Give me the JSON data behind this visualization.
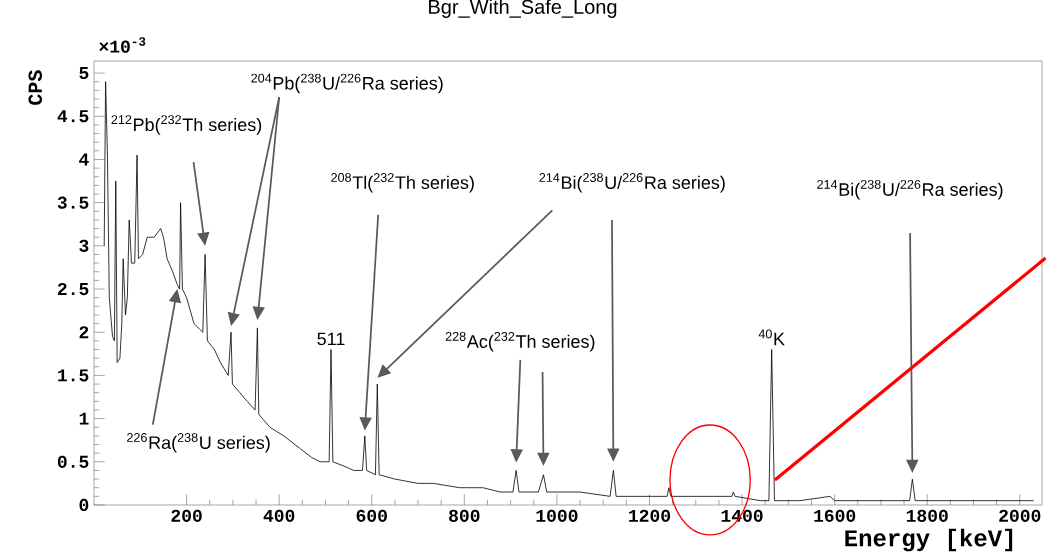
{
  "chart_data": {
    "type": "line",
    "title": "Bgr_With_Safe_Long",
    "xlabel": "Energy [keV]",
    "ylabel": "CPS",
    "annotations": [
      "×10$^{-3}$",
      "$^{212}$Pb($^{232}$Th series)",
      "$^{204}$Pb($^{238}$U/$^{226}$Ra series)",
      {
        "text": "511",
        "x": 512,
        "y": 1.8
      },
      "$^{208}$Tl($^{232}$Th series)",
      "$^{214}$Bi($^{238}$U/$^{226}$Ra series)",
      "$^{228}$Ac($^{232}$Th series)",
      {
        "text": "$^{40}$K",
        "x": 1464,
        "y": 1.8
      },
      "$^{214}$Bi($^{238}$U/$^{226}$Ra series)",
      "$^{226}$Ra($^{238}$U series)"
    ],
    "x": [
      22,
      25,
      29,
      33,
      40,
      44,
      47,
      50,
      56,
      60,
      63,
      68,
      72,
      76,
      81,
      88,
      93,
      96,
      105,
      115,
      130,
      144,
      150,
      158,
      170,
      180,
      185,
      187,
      191,
      200,
      216,
      235,
      240,
      245,
      260,
      273,
      290,
      296,
      299,
      315,
      331,
      348,
      353,
      356,
      380,
      410,
      446,
      470,
      489,
      508,
      512,
      516,
      540,
      561,
      580,
      585,
      589,
      608,
      612,
      616,
      650,
      700,
      733,
      790,
      840,
      878,
      905,
      912,
      918,
      960,
      971,
      978,
      1050,
      1115,
      1122,
      1128,
      1200,
      1238,
      1242,
      1246,
      1300,
      1378,
      1381,
      1385,
      1440,
      1458,
      1464,
      1470,
      1525,
      1590,
      1600,
      1700,
      1762,
      1768,
      1774,
      1850,
      1950,
      2030
    ],
    "series": [
      {
        "color": "#000000",
        "values": [
          3.0,
          4.9,
          4.05,
          2.4,
          1.95,
          1.9,
          3.75,
          1.65,
          1.7,
          2.1,
          2.85,
          2.2,
          2.4,
          3.3,
          2.8,
          2.8,
          4.05,
          2.85,
          2.9,
          3.1,
          3.1,
          3.2,
          3.1,
          2.85,
          2.7,
          2.55,
          2.5,
          3.5,
          2.5,
          2.4,
          2.1,
          2.0,
          2.9,
          1.9,
          1.8,
          1.65,
          1.5,
          2.0,
          1.4,
          1.3,
          1.2,
          1.1,
          2.05,
          1.05,
          0.9,
          0.8,
          0.65,
          0.55,
          0.5,
          0.5,
          1.8,
          0.5,
          0.45,
          0.4,
          0.4,
          0.8,
          0.4,
          0.35,
          1.4,
          0.35,
          0.3,
          0.25,
          0.25,
          0.2,
          0.2,
          0.15,
          0.15,
          0.4,
          0.15,
          0.15,
          0.35,
          0.15,
          0.15,
          0.1,
          0.4,
          0.1,
          0.1,
          0.1,
          0.2,
          0.1,
          0.1,
          0.1,
          0.15,
          0.1,
          0.05,
          0.05,
          1.8,
          0.05,
          0.05,
          0.1,
          0.05,
          0.05,
          0.05,
          0.3,
          0.05,
          0.05,
          0.05,
          0.05
        ]
      }
    ],
    "xlim": [
      0,
      2048
    ],
    "xticks": [
      200,
      400,
      600,
      800,
      1000,
      1200,
      1400,
      1600,
      1800,
      2000
    ],
    "ylim": [
      0,
      5.14
    ],
    "yticks": [
      0,
      0.5,
      1,
      1.5,
      2,
      2.5,
      3,
      3.5,
      4,
      4.5,
      5
    ],
    "grid": false,
    "marker": "none",
    "line_style": "solid"
  }
}
